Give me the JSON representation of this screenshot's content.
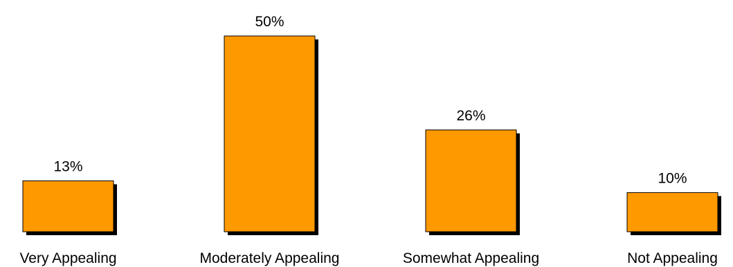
{
  "chart_data": {
    "type": "bar",
    "categories": [
      "Very Appealing",
      "Moderately Appealing",
      "Somewhat Appealing",
      "Not Appealing"
    ],
    "values": [
      13,
      50,
      26,
      10
    ],
    "data_labels": [
      "13%",
      "50%",
      "26%",
      "10%"
    ],
    "title": "",
    "xlabel": "",
    "ylabel": "",
    "ylim": [
      0,
      50
    ],
    "grid": false,
    "legend": "none",
    "bar_color": "#FF9900",
    "shadow_color": "#000000"
  }
}
